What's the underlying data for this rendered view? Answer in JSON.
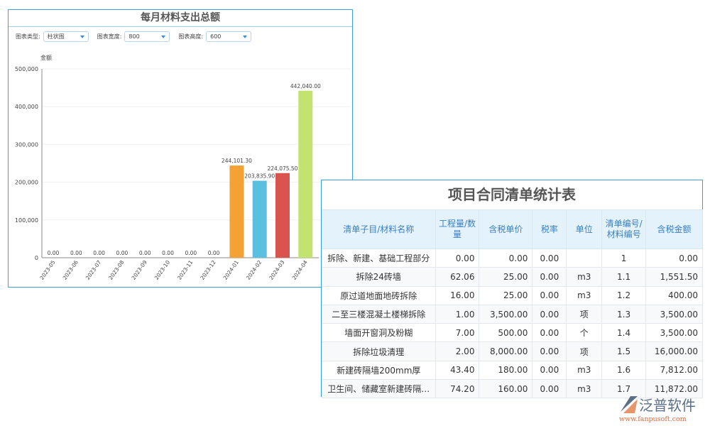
{
  "chart_panel": {
    "title": "每月材料支出总额",
    "controls": [
      {
        "label": "图表类型:",
        "value": "柱状图"
      },
      {
        "label": "图表宽度:",
        "value": "800"
      },
      {
        "label": "图表高度:",
        "value": "600"
      }
    ]
  },
  "chart_data": {
    "type": "bar",
    "ylabel": "金额",
    "ylim": [
      0,
      500000
    ],
    "yticks": [
      "0",
      "100,000",
      "200,000",
      "300,000",
      "400,000",
      "500,000"
    ],
    "categories": [
      "2023-05",
      "2023-06",
      "2023-07",
      "2023-08",
      "2023-09",
      "2023-10",
      "2023-11",
      "2023-12",
      "2024-01",
      "2024-02",
      "2024-03",
      "2024-04"
    ],
    "values": [
      0,
      0,
      0,
      0,
      0,
      0,
      0,
      0,
      244101.3,
      203835.9,
      224075.5,
      442040.0
    ],
    "data_labels": [
      "0.00",
      "0.00",
      "0.00",
      "0.00",
      "0.00",
      "0.00",
      "0.00",
      "0.00",
      "244,101.30",
      "203,835.90",
      "224,075.50",
      "442,040.00"
    ],
    "colors": [
      "#5b9bd5",
      "#5b9bd5",
      "#5b9bd5",
      "#5b9bd5",
      "#5b9bd5",
      "#5b9bd5",
      "#5b9bd5",
      "#5b9bd5",
      "#f4a236",
      "#5bc0de",
      "#d9534f",
      "#c2e36f"
    ],
    "grid": true
  },
  "table_panel": {
    "title": "项目合同清单统计表",
    "headers": [
      "清单子目/材料名称",
      "工程量/数量",
      "含税单价",
      "税率",
      "单位",
      "清单编号/材料编号",
      "含税金额"
    ],
    "rows": [
      [
        "拆除、新建、基础工程部分",
        "0.00",
        "0.00",
        "0.00",
        "",
        "1",
        "0.00"
      ],
      [
        "拆除24砖墙",
        "62.06",
        "25.00",
        "0.00",
        "m3",
        "1.1",
        "1,551.50"
      ],
      [
        "原过道地面地砖拆除",
        "16.00",
        "25.00",
        "0.00",
        "m3",
        "1.2",
        "400.00"
      ],
      [
        "二至三楼混凝土楼梯拆除",
        "1.00",
        "3,500.00",
        "0.00",
        "项",
        "1.3",
        "3,500.00"
      ],
      [
        "墙面开窗洞及粉糊",
        "7.00",
        "500.00",
        "0.00",
        "个",
        "1.4",
        "3,500.00"
      ],
      [
        "拆除垃圾清理",
        "2.00",
        "8,000.00",
        "0.00",
        "项",
        "1.5",
        "16,000.00"
      ],
      [
        "新建砖隔墙200mm厚",
        "43.40",
        "180.00",
        "0.00",
        "m3",
        "1.6",
        "7,812.00"
      ],
      [
        "卫生间、储藏室新建砖隔…",
        "74.20",
        "160.00",
        "0.00",
        "m3",
        "1.7",
        "11,872.00"
      ]
    ]
  },
  "watermark": {
    "name": "泛普软件",
    "url": "www.fanpusoft.com"
  }
}
